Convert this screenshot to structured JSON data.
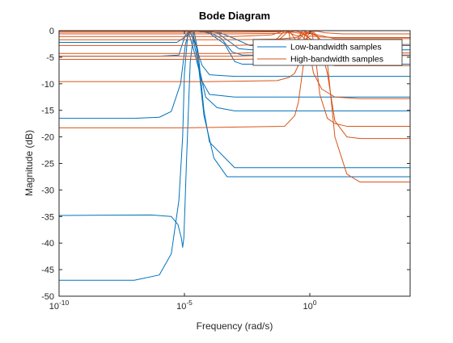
{
  "chart_data": {
    "type": "line",
    "title": "Bode Diagram",
    "xlabel": "Frequency (rad/s)",
    "ylabel": "Magnitude (dB)",
    "x_scale": "log",
    "xlim": [
      1e-10,
      10000
    ],
    "ylim": [
      -50,
      0
    ],
    "x_ticks": [
      {
        "value": 1e-10,
        "base": "10",
        "exp": "-10"
      },
      {
        "value": 1e-05,
        "base": "10",
        "exp": "-5"
      },
      {
        "value": 1,
        "base": "10",
        "exp": "0"
      }
    ],
    "y_ticks": [
      0,
      -5,
      -10,
      -15,
      -20,
      -25,
      -30,
      -35,
      -40,
      -45,
      -50
    ],
    "y_tick_labels": [
      "0",
      "-5",
      "-10",
      "-15",
      "-20",
      "-25",
      "-30",
      "-35",
      "-40",
      "-45",
      "-50"
    ],
    "grid": false,
    "legend_position": "top-right",
    "colors": {
      "low": "#0072BD",
      "high": "#D95319"
    },
    "series": [
      {
        "name": "Low-bandwidth samples",
        "group": "low",
        "x": [
          1e-10,
          1e-07,
          1e-06,
          3e-06,
          7e-06,
          1.1e-05,
          1.6e-05,
          2.5e-05,
          5e-05,
          0.0001,
          0.001,
          10000.0
        ],
        "y": [
          -16.5,
          -16.5,
          -16.3,
          -15.2,
          -10,
          -2.5,
          0,
          -2,
          -6.5,
          -8.3,
          -8.6,
          -8.6
        ]
      },
      {
        "group": "low",
        "x": [
          1e-10,
          1e-07,
          1e-06,
          3e-06,
          6e-06,
          8.5e-06,
          1e-05,
          1.4e-05,
          2.3e-05,
          5e-05,
          0.0001,
          0.001,
          10000.0
        ],
        "y": [
          -47,
          -47,
          -46,
          -42,
          -32,
          -20,
          -8,
          0,
          -3.5,
          -9.5,
          -12,
          -12.5,
          -12.5
        ]
      },
      {
        "group": "low",
        "x": [
          1e-10,
          5e-07,
          3e-06,
          5.5e-06,
          7.5e-06,
          8.5e-06,
          9.5e-06,
          1.2e-05,
          1.7e-05,
          2.4e-05,
          3.5e-05,
          6e-05,
          0.0001,
          0.001,
          10000.0
        ],
        "y": [
          -34.8,
          -34.7,
          -35,
          -36.5,
          -39,
          -40.8,
          -39,
          -25,
          -6,
          0,
          -4,
          -15,
          -21,
          -25.8,
          -25.8
        ]
      },
      {
        "group": "low",
        "x": [
          1e-10,
          1e-06,
          6e-06,
          1.05e-05,
          1.6e-05,
          2.2e-05,
          3.5e-05,
          7e-05,
          0.0002,
          0.001,
          10000.0
        ],
        "y": [
          -4.8,
          -4.8,
          -4.6,
          -1,
          0,
          -1.5,
          -6,
          -12.5,
          -14.5,
          -15.1,
          -15.1
        ]
      },
      {
        "group": "low",
        "x": [
          1e-10,
          5e-06,
          1.2e-05,
          2e-05,
          3e-05,
          6e-05,
          0.00015,
          0.0005,
          10000.0
        ],
        "y": [
          -2.2,
          -2.2,
          -1,
          0,
          -3,
          -16,
          -24,
          -27.5,
          -27.5
        ]
      },
      {
        "group": "low",
        "x": [
          1e-10,
          1e-05,
          3e-05,
          0.0001,
          0.0004,
          0.001,
          0.002,
          10000.0
        ],
        "y": [
          0,
          0,
          0,
          -0.5,
          -2.5,
          -5.8,
          -6.3,
          -6.3
        ]
      },
      {
        "group": "low",
        "x": [
          1e-10,
          1e-05,
          3e-05,
          0.0001,
          0.0003,
          0.0008,
          0.002,
          10000.0
        ],
        "y": [
          0,
          0,
          0,
          -0.3,
          -1.5,
          -4,
          -4.6,
          -4.6
        ]
      },
      {
        "group": "low",
        "x": [
          1e-10,
          1e-05,
          5e-05,
          0.0002,
          0.0006,
          0.0015,
          0.005,
          10000.0
        ],
        "y": [
          0,
          0,
          0,
          -0.4,
          -2,
          -3.4,
          -3.6,
          -3.6
        ]
      },
      {
        "group": "low",
        "x": [
          1e-10,
          1e-05,
          6e-05,
          0.0003,
          0.001,
          0.004,
          10000.0
        ],
        "y": [
          0,
          0,
          0,
          -0.5,
          -1.5,
          -2.8,
          -2.8
        ]
      },
      {
        "name": "High-bandwidth samples",
        "group": "high",
        "x": [
          1e-10,
          1e-05,
          0.1,
          0.25,
          0.35,
          0.5,
          0.8,
          1.2,
          1.6,
          2.5,
          5,
          10,
          30,
          10000.0
        ],
        "y": [
          -18.3,
          -18.3,
          -18,
          -16,
          -13.5,
          -8,
          -1,
          0,
          -4,
          -12,
          -16.5,
          -17.5,
          -18,
          -18
        ]
      },
      {
        "group": "high",
        "x": [
          1e-10,
          0.0001,
          0.05,
          0.15,
          0.25,
          0.35,
          0.5,
          0.7,
          0.9,
          1.4,
          3,
          10,
          100,
          10000.0
        ],
        "y": [
          -9.6,
          -9.6,
          -9.4,
          -8.8,
          -8,
          -6.5,
          -3,
          0,
          -3,
          -8,
          -11,
          -12.5,
          -12.8,
          -12.8
        ]
      },
      {
        "group": "high",
        "x": [
          1e-10,
          0.001,
          0.1,
          0.5,
          2,
          5,
          10,
          30,
          100,
          10000.0
        ],
        "y": [
          -5.4,
          -5.4,
          -5.3,
          -4.5,
          -2.8,
          -6,
          -20,
          -27,
          -28.5,
          -28.5
        ]
      },
      {
        "group": "high",
        "x": [
          1e-10,
          0.001,
          0.05,
          0.3,
          0.8,
          2,
          5,
          10,
          30,
          100,
          10000.0
        ],
        "y": [
          -1.7,
          -1.7,
          -1.6,
          -1.3,
          -0.4,
          -1,
          -8,
          -17,
          -20,
          -20.3,
          -20.3
        ]
      },
      {
        "group": "high",
        "x": [
          1e-10,
          0.001,
          0.01,
          0.05,
          0.1,
          0.15,
          0.22,
          0.3,
          0.5,
          1,
          10,
          10000.0
        ],
        "y": [
          -2.8,
          -2.8,
          -2.6,
          -1.5,
          0,
          -0.5,
          -6,
          -2,
          0,
          -0.5,
          -1.5,
          -1.5
        ]
      },
      {
        "group": "high",
        "x": [
          1e-10,
          0.001,
          0.02,
          0.05,
          0.15,
          0.3,
          0.5,
          1.2,
          3,
          10,
          10000.0
        ],
        "y": [
          -4.3,
          -4.3,
          -4,
          -2,
          0,
          -2,
          -1,
          -3.5,
          -6,
          -6.6,
          -6.6
        ]
      },
      {
        "group": "high",
        "x": [
          1e-10,
          0.001,
          0.03,
          0.1,
          0.3,
          0.7,
          1.5,
          3,
          10,
          10000.0
        ],
        "y": [
          -1.1,
          -1.1,
          -0.8,
          0,
          -1,
          -0.6,
          -0.4,
          -2,
          -4.2,
          -4.2
        ]
      },
      {
        "group": "high",
        "x": [
          1e-10,
          0.001,
          0.05,
          0.2,
          0.5,
          1,
          2,
          10,
          10000.0
        ],
        "y": [
          -0.3,
          -0.3,
          -0.2,
          0,
          -0.3,
          -1.5,
          -3,
          -4.7,
          -4.7
        ]
      },
      {
        "group": "high",
        "x": [
          1e-10,
          0.001,
          0.05,
          0.2,
          0.5,
          1,
          3,
          10,
          10000.0
        ],
        "y": [
          -4.8,
          -4.8,
          -4.6,
          -3.2,
          -2,
          -1,
          -1.2,
          -1.3,
          -1.3
        ]
      },
      {
        "group": "high",
        "x": [
          1e-10,
          0.001,
          0.1,
          0.4,
          1,
          2,
          4,
          20,
          10000.0
        ],
        "y": [
          -0.1,
          -0.1,
          -0.1,
          -0.5,
          -0.2,
          -0.1,
          -0.4,
          -0.6,
          -0.6
        ]
      },
      {
        "group": "high",
        "x": [
          1e-10,
          0.001,
          0.08,
          0.3,
          0.6,
          1,
          3,
          10,
          10000.0
        ],
        "y": [
          -0.6,
          -0.6,
          -0.5,
          0,
          -0.8,
          -1.5,
          -2.5,
          -2.6,
          -2.6
        ]
      }
    ]
  }
}
